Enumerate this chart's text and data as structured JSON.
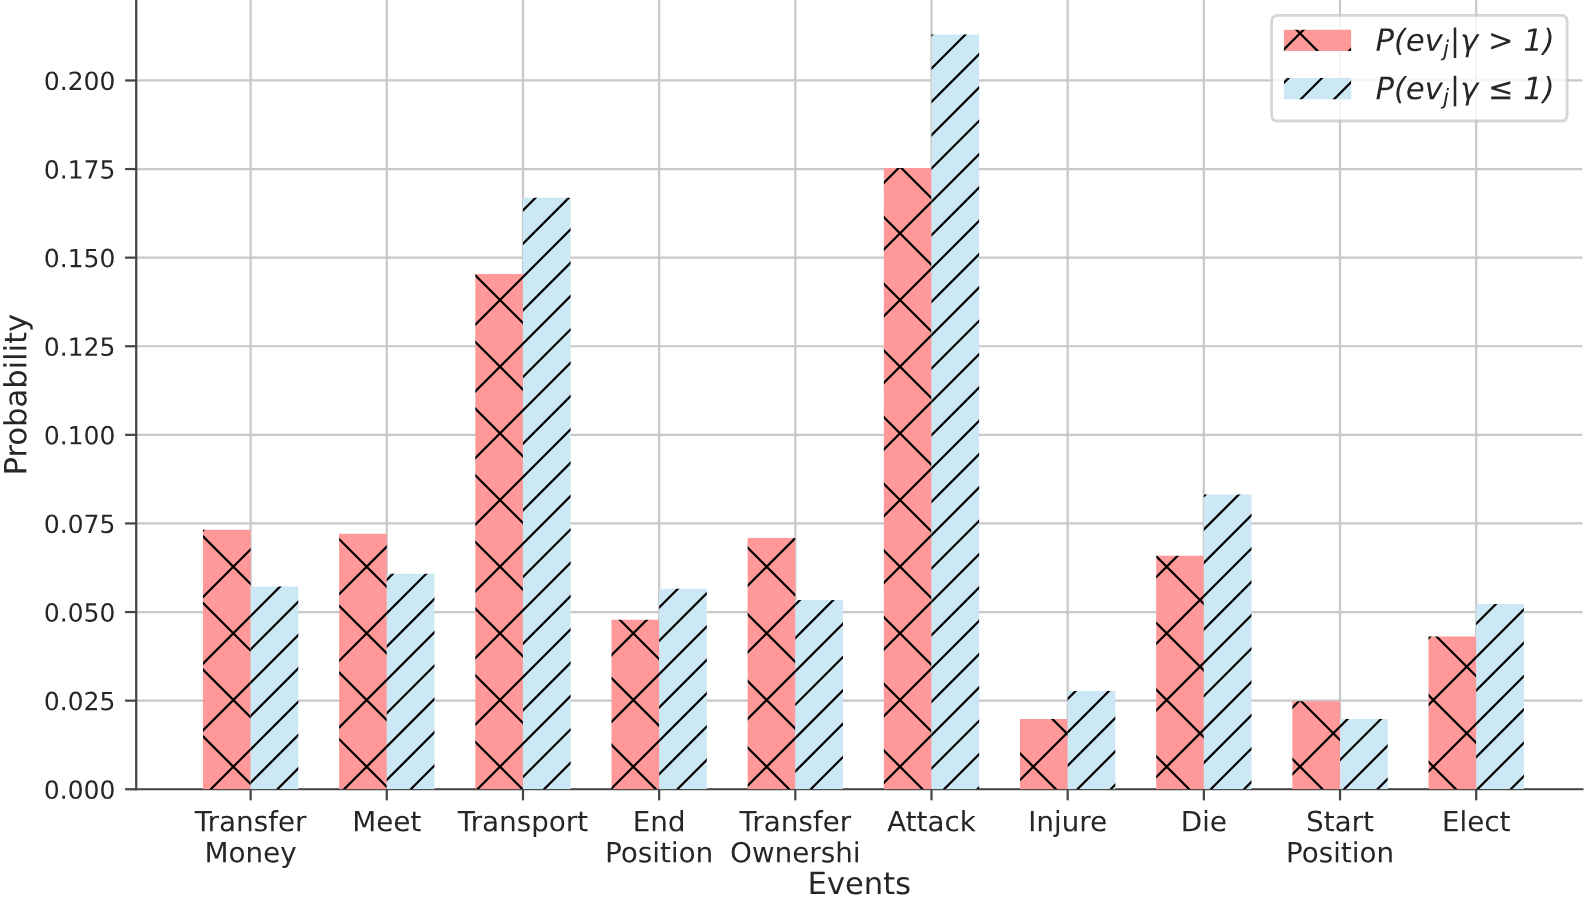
{
  "chart_data": {
    "type": "bar",
    "xlabel": "Events",
    "ylabel": "Probability",
    "categories": [
      "Transfer\nMoney",
      "Meet",
      "Transport",
      "End\nPosition",
      "Transfer\nOwnershi",
      "Attack",
      "Injure",
      "Die",
      "Start\nPosition",
      "Elect"
    ],
    "series": [
      {
        "name": "P(ev$_{j}$|γ > 1)",
        "color": "#ff9999",
        "values": [
          0.0732,
          0.0721,
          0.1454,
          0.0478,
          0.0709,
          0.1753,
          0.0198,
          0.0659,
          0.0248,
          0.0431
        ]
      },
      {
        "name": "P(ev$_{j}$|γ ≤ 1)",
        "color": "#cce8f4",
        "values": [
          0.0572,
          0.0608,
          0.1669,
          0.0566,
          0.0534,
          0.213,
          0.0277,
          0.0832,
          0.0198,
          0.0523
        ]
      }
    ],
    "ylim": [
      0,
      0.2227
    ],
    "yticks": [
      {
        "value": 0,
        "label": "0.000"
      },
      {
        "value": 0.025,
        "label": "0.025"
      },
      {
        "value": 0.05,
        "label": "0.050"
      },
      {
        "value": 0.075,
        "label": "0.075"
      },
      {
        "value": 0.1,
        "label": "0.100"
      },
      {
        "value": 0.125,
        "label": "0.125"
      },
      {
        "value": 0.15,
        "label": "0.150"
      },
      {
        "value": 0.175,
        "label": "0.175"
      },
      {
        "value": 0.2,
        "label": "0.200"
      }
    ],
    "grid": true,
    "legend": "top right"
  }
}
